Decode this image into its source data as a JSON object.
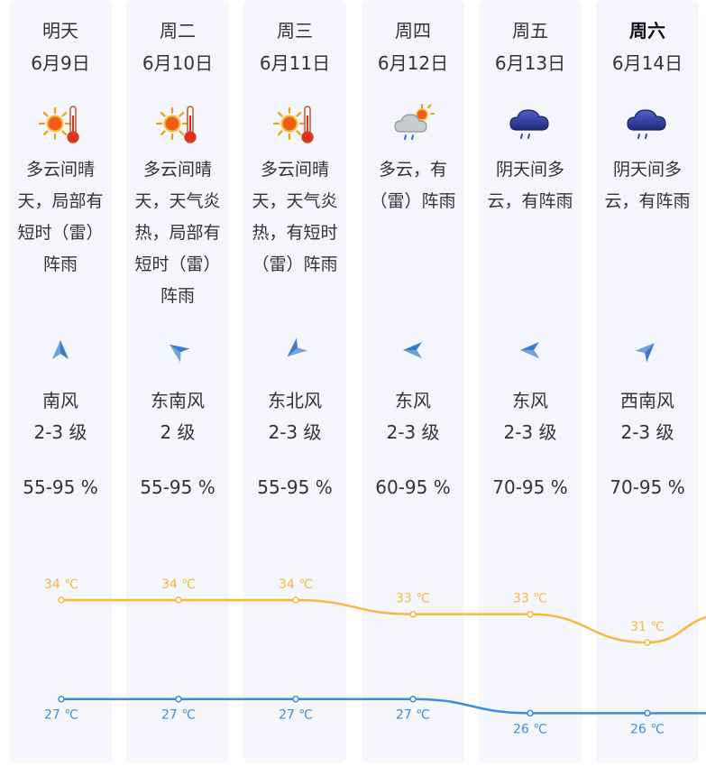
{
  "forecast": {
    "days": [
      {
        "name": "明天",
        "date": "6月9日",
        "bold": false,
        "weather": "多云间晴天，局部有短时（雷）阵雨",
        "icon": "sunny-hot-icon",
        "wind_dir": "南风",
        "wind_level": "2-3 级",
        "wind_icon": "wind-arrow-south-icon",
        "wind_angle": 0,
        "humidity": "55-95 %"
      },
      {
        "name": "周二",
        "date": "6月10日",
        "bold": false,
        "weather": "多云间晴天，天气炎热，局部有短时（雷）阵雨",
        "icon": "sunny-hot-icon",
        "wind_dir": "东南风",
        "wind_level": "2 级",
        "wind_icon": "wind-arrow-southeast-icon",
        "wind_angle": -55,
        "humidity": "55-95 %"
      },
      {
        "name": "周三",
        "date": "6月11日",
        "bold": false,
        "weather": "多云间晴天，天气炎热，有短时（雷）阵雨",
        "icon": "sunny-hot-icon",
        "wind_dir": "东北风",
        "wind_level": "2-3 级",
        "wind_icon": "wind-arrow-northeast-icon",
        "wind_angle": -130,
        "humidity": "55-95 %"
      },
      {
        "name": "周四",
        "date": "6月12日",
        "bold": false,
        "weather": "多云，有（雷）阵雨",
        "icon": "cloudy-sun-rain-icon",
        "wind_dir": "东风",
        "wind_level": "2-3 级",
        "wind_icon": "wind-arrow-east-icon",
        "wind_angle": -90,
        "humidity": "60-95 %"
      },
      {
        "name": "周五",
        "date": "6月13日",
        "bold": false,
        "weather": "阴天间多云，有阵雨",
        "icon": "dark-cloud-rain-icon",
        "wind_dir": "东风",
        "wind_level": "2-3 级",
        "wind_icon": "wind-arrow-east-icon",
        "wind_angle": -90,
        "humidity": "70-95 %"
      },
      {
        "name": "周六",
        "date": "6月14日",
        "bold": true,
        "weather": "阴天间多云，有阵雨",
        "icon": "dark-cloud-rain-icon",
        "wind_dir": "西南风",
        "wind_level": "2-3 级",
        "wind_icon": "wind-arrow-southwest-icon",
        "wind_angle": 45,
        "humidity": "70-95 %"
      }
    ]
  },
  "chart_data": {
    "type": "line",
    "categories": [
      "6月9日",
      "6月10日",
      "6月11日",
      "6月12日",
      "6月13日",
      "6月14日"
    ],
    "series": [
      {
        "name": "",
        "values": [
          34,
          34,
          34,
          33,
          33,
          31
        ],
        "labels": [
          "34 ℃",
          "34 ℃",
          "34 ℃",
          "33 ℃",
          "33 ℃",
          "31 ℃"
        ],
        "color": "#f5b942"
      },
      {
        "name": "",
        "values": [
          27,
          27,
          27,
          27,
          26,
          26
        ],
        "labels": [
          "27 ℃",
          "27 ℃",
          "27 ℃",
          "27 ℃",
          "26 ℃",
          "26 ℃"
        ],
        "color": "#3b8de0"
      }
    ],
    "grid": false,
    "legend": "none"
  }
}
